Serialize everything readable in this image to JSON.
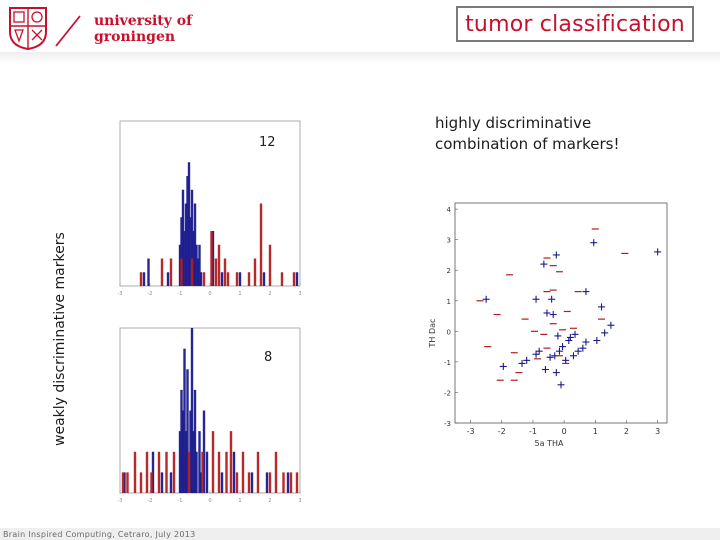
{
  "header": {
    "logo_line1": "university of",
    "logo_line2": "groningen",
    "title": "tumor classification"
  },
  "subtitle_line1": "highly discriminative",
  "subtitle_line2": "combination of markers!",
  "vertical_label": "weakly discriminative markers",
  "footer": "Brain Inspired Computing, Cetraro, July 2013",
  "colors": {
    "class_plus": "#1a1a8c",
    "class_minus": "#b41e1e",
    "brand": "#c8102e"
  },
  "chart_data": [
    {
      "type": "bar",
      "panel": "top-histogram",
      "annotation": "12",
      "series": [
        {
          "values": [
            [
              -2.2,
              1
            ],
            [
              -2.05,
              2
            ],
            [
              -1.4,
              1
            ],
            [
              -1.0,
              3
            ],
            [
              -0.95,
              5
            ],
            [
              -0.9,
              7
            ],
            [
              -0.85,
              4
            ],
            [
              -0.8,
              6
            ],
            [
              -0.75,
              8
            ],
            [
              -0.7,
              9
            ],
            [
              -0.65,
              5
            ],
            [
              -0.6,
              7
            ],
            [
              -0.55,
              4
            ],
            [
              -0.5,
              6
            ],
            [
              -0.45,
              3
            ],
            [
              -0.4,
              2
            ],
            [
              -0.35,
              3
            ],
            [
              -0.3,
              1
            ],
            [
              0.1,
              4
            ],
            [
              0.4,
              1
            ],
            [
              1.0,
              1
            ],
            [
              1.8,
              1
            ],
            [
              2.9,
              1
            ]
          ]
        },
        {
          "values": [
            [
              -2.3,
              1
            ],
            [
              -1.6,
              2
            ],
            [
              -1.3,
              2
            ],
            [
              -0.95,
              2
            ],
            [
              -0.6,
              2
            ],
            [
              -0.2,
              1
            ],
            [
              0.05,
              4
            ],
            [
              0.2,
              2
            ],
            [
              0.3,
              3
            ],
            [
              0.5,
              2
            ],
            [
              0.6,
              1
            ],
            [
              0.9,
              1
            ],
            [
              1.3,
              1
            ],
            [
              1.5,
              2
            ],
            [
              1.7,
              6
            ],
            [
              2.0,
              3
            ],
            [
              2.4,
              1
            ],
            [
              2.8,
              1
            ]
          ]
        }
      ],
      "xlim": [
        -3,
        3
      ],
      "ylim": [
        0,
        12
      ],
      "xticks": [
        "-3",
        "-2",
        "-1",
        "0",
        "1",
        "2",
        "3"
      ]
    },
    {
      "type": "bar",
      "panel": "bottom-histogram",
      "annotation": "8",
      "series": [
        {
          "values": [
            [
              -2.85,
              1
            ],
            [
              -1.9,
              2
            ],
            [
              -1.6,
              1
            ],
            [
              -1.3,
              1
            ],
            [
              -1.0,
              3
            ],
            [
              -0.95,
              5
            ],
            [
              -0.9,
              4
            ],
            [
              -0.85,
              7
            ],
            [
              -0.8,
              3
            ],
            [
              -0.75,
              6
            ],
            [
              -0.65,
              4
            ],
            [
              -0.6,
              8
            ],
            [
              -0.55,
              3
            ],
            [
              -0.5,
              5
            ],
            [
              -0.45,
              2
            ],
            [
              -0.35,
              3
            ],
            [
              -0.3,
              1
            ],
            [
              -0.2,
              4
            ],
            [
              -0.1,
              2
            ],
            [
              0.4,
              1
            ],
            [
              0.8,
              2
            ],
            [
              1.4,
              1
            ],
            [
              1.9,
              1
            ],
            [
              2.6,
              1
            ]
          ]
        },
        {
          "values": [
            [
              -2.9,
              1
            ],
            [
              -2.75,
              1
            ],
            [
              -2.5,
              2
            ],
            [
              -2.3,
              1
            ],
            [
              -2.1,
              2
            ],
            [
              -1.95,
              1
            ],
            [
              -1.7,
              2
            ],
            [
              -1.45,
              2
            ],
            [
              -1.2,
              2
            ],
            [
              -0.7,
              2
            ],
            [
              -0.25,
              2
            ],
            [
              0.1,
              3
            ],
            [
              0.3,
              2
            ],
            [
              0.55,
              2
            ],
            [
              0.7,
              3
            ],
            [
              0.9,
              1
            ],
            [
              1.1,
              2
            ],
            [
              1.3,
              1
            ],
            [
              1.6,
              2
            ],
            [
              2.0,
              1
            ],
            [
              2.2,
              2
            ],
            [
              2.45,
              1
            ],
            [
              2.7,
              1
            ],
            [
              2.9,
              1
            ]
          ]
        }
      ],
      "xlim": [
        -3,
        3
      ],
      "ylim": [
        0,
        8
      ],
      "xticks": [
        "-3",
        "-2",
        "-1",
        "0",
        "1",
        "2",
        "3"
      ]
    },
    {
      "type": "scatter",
      "panel": "marker-scatter",
      "xlabel": "5a THA",
      "ylabel": "TH Dac",
      "xlim": [
        -3.5,
        3.3
      ],
      "ylim": [
        -3,
        4.2
      ],
      "xticks": [
        "-3",
        "-2",
        "-1",
        "0",
        "1",
        "2",
        "3"
      ],
      "yticks": [
        "-3",
        "-2",
        "-1",
        "0",
        "1",
        "2",
        "3",
        "4"
      ],
      "series": [
        {
          "marker": "+",
          "points": [
            [
              0.95,
              2.9
            ],
            [
              -0.25,
              2.5
            ],
            [
              -0.65,
              2.2
            ],
            [
              3.0,
              2.6
            ],
            [
              -2.5,
              1.05
            ],
            [
              -0.9,
              1.05
            ],
            [
              -0.4,
              1.05
            ],
            [
              -0.55,
              0.6
            ],
            [
              -0.35,
              0.55
            ],
            [
              0.7,
              1.3
            ],
            [
              1.2,
              0.8
            ],
            [
              1.5,
              0.2
            ],
            [
              0.35,
              -0.1
            ],
            [
              0.15,
              -0.3
            ],
            [
              -0.05,
              -0.5
            ],
            [
              -0.8,
              -0.65
            ],
            [
              -0.9,
              -0.75
            ],
            [
              -0.3,
              -0.8
            ],
            [
              -0.45,
              -0.85
            ],
            [
              -1.2,
              -0.95
            ],
            [
              -1.35,
              -1.05
            ],
            [
              -0.6,
              -1.25
            ],
            [
              -0.25,
              -1.35
            ],
            [
              -1.95,
              -1.15
            ],
            [
              0.05,
              -0.95
            ],
            [
              0.6,
              -0.55
            ],
            [
              0.7,
              -0.35
            ],
            [
              -0.2,
              -0.15
            ],
            [
              0.2,
              -0.2
            ],
            [
              0.45,
              -0.65
            ],
            [
              -0.1,
              -1.75
            ],
            [
              1.05,
              -0.3
            ],
            [
              1.3,
              -0.05
            ],
            [
              -0.15,
              -0.65
            ],
            [
              0.3,
              -0.8
            ]
          ]
        },
        {
          "marker": "–",
          "points": [
            [
              1.0,
              3.35
            ],
            [
              1.95,
              2.55
            ],
            [
              -0.55,
              2.4
            ],
            [
              -0.35,
              2.15
            ],
            [
              -0.15,
              1.95
            ],
            [
              -1.75,
              1.85
            ],
            [
              -2.7,
              1.0
            ],
            [
              -2.15,
              0.55
            ],
            [
              -0.55,
              1.3
            ],
            [
              -0.35,
              1.35
            ],
            [
              0.45,
              1.3
            ],
            [
              0.1,
              0.65
            ],
            [
              -0.35,
              0.25
            ],
            [
              -1.25,
              0.4
            ],
            [
              -0.95,
              0.0
            ],
            [
              -0.65,
              -0.1
            ],
            [
              -0.05,
              0.05
            ],
            [
              0.3,
              0.1
            ],
            [
              1.2,
              0.4
            ],
            [
              -2.45,
              -0.5
            ],
            [
              -1.6,
              -0.7
            ],
            [
              -0.55,
              -0.55
            ],
            [
              -0.85,
              -0.9
            ],
            [
              -0.15,
              -0.8
            ],
            [
              -2.05,
              -1.6
            ],
            [
              -1.45,
              -1.35
            ],
            [
              -1.6,
              -1.6
            ],
            [
              0.05,
              -1.05
            ]
          ]
        }
      ]
    }
  ]
}
